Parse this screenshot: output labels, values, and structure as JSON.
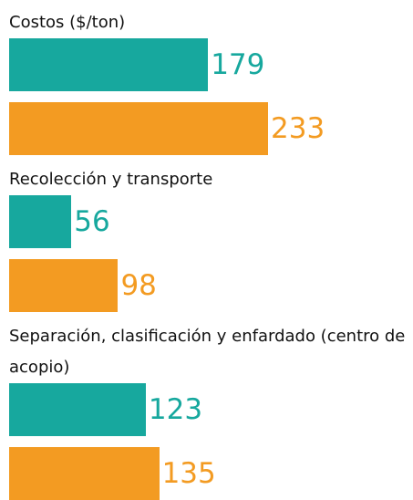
{
  "chart_data": {
    "type": "bar",
    "categories": [
      "Costos ($/ton)",
      "Recolección y transporte",
      "Separación, clasificación y enfardado (centro de acopio)"
    ],
    "series": [
      {
        "color": "#17a89e",
        "values": [
          179,
          56,
          123
        ]
      },
      {
        "color": "#f39b22",
        "values": [
          233,
          98,
          135
        ]
      }
    ]
  }
}
